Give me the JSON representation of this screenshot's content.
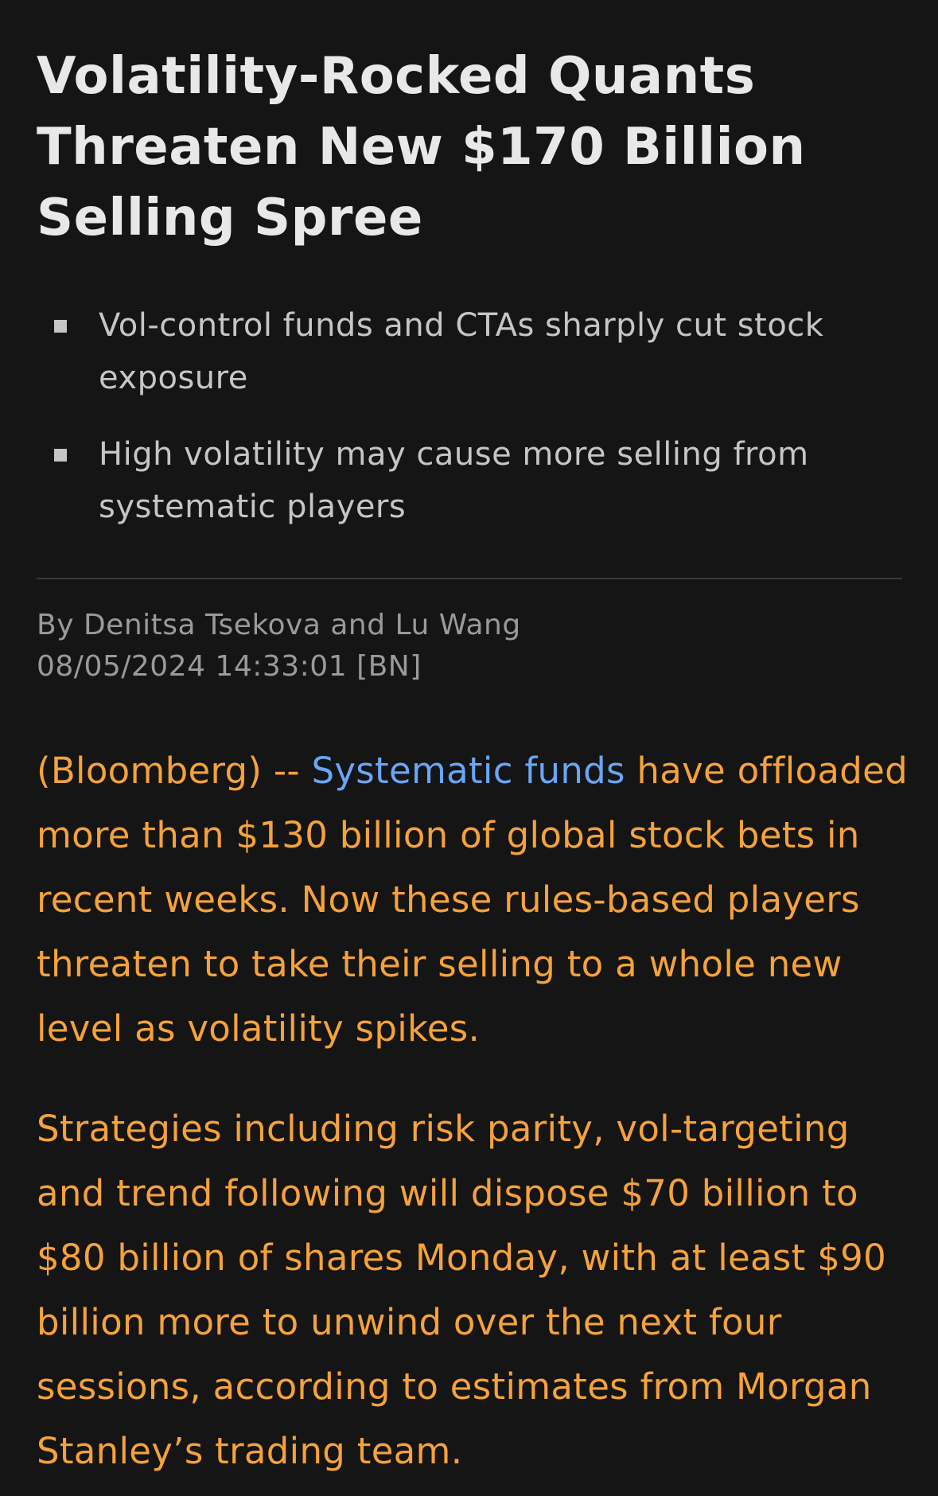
{
  "article": {
    "headline": "Volatility-Rocked Quants Threaten New $170 Billion Selling Spree",
    "bullets": [
      "Vol-control funds and CTAs sharply cut stock exposure",
      "High volatility may cause more selling from systematic players"
    ],
    "byline": "By Denitsa Tsekova and Lu Wang",
    "timestamp": "08/05/2024 14:33:01 [BN]",
    "paragraphs": [
      {
        "prefix": "(Bloomberg) -- ",
        "link_text": "Systematic funds",
        "text": " have offloaded more than $130 billion of global stock bets in recent weeks. Now these rules-based players threaten to take their selling to a whole new level as volatility spikes."
      },
      {
        "text": "Strategies including risk parity, vol-targeting and trend following will dispose $70 billion to $80 billion of shares Monday, with at least $90 billion more to unwind over the next four sessions, according to estimates from Morgan Stanley’s trading team."
      }
    ]
  },
  "colors": {
    "background": "#151515",
    "headline": "#e8e8e8",
    "bullet_text": "#c6c6c6",
    "byline": "#9a9a9a",
    "body_text": "#f5a23c",
    "link": "#6aa6f5"
  }
}
